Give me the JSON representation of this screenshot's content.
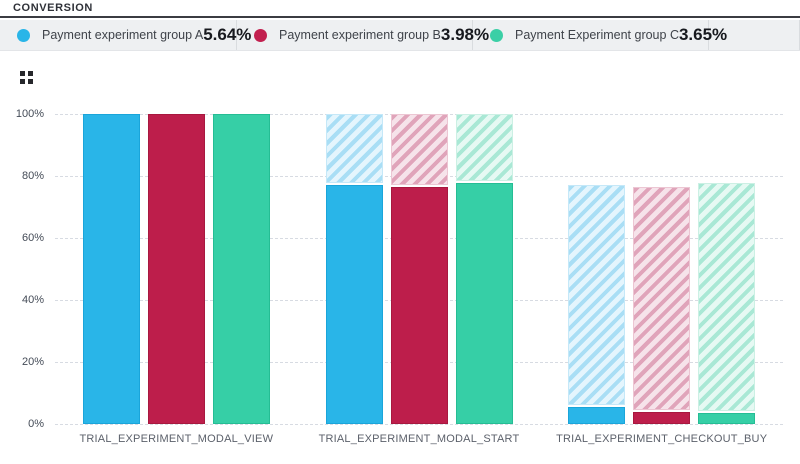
{
  "header": {
    "title": "CONVERSION"
  },
  "legend": {
    "items": [
      {
        "label": "Payment experiment group A",
        "value": "5.64%",
        "color": "#29b5e8"
      },
      {
        "label": "Payment experiment group B",
        "value": "3.98%",
        "color": "#c2204f"
      },
      {
        "label": "Payment Experiment group C",
        "value": "3.65%",
        "color": "#3bcfa6"
      }
    ]
  },
  "icons": {
    "grid_handle": "grid-handle-icon"
  },
  "chart_data": {
    "type": "bar",
    "subtype": "funnel-conversion-with-hatched-loss",
    "title": "CONVERSION",
    "categories": [
      "TRIAL_EXPERIMENT_MODAL_VIEW",
      "TRIAL_EXPERIMENT_MODAL_START",
      "TRIAL_EXPERIMENT_CHECKOUT_BUY"
    ],
    "series": [
      {
        "name": "Payment experiment group A",
        "values": [
          100,
          77.0,
          5.64
        ],
        "color": "#29b5e8",
        "border_color": "#1aa5da",
        "hatch_stripe": "#a9def5",
        "hatch_bg": "#e4f5fd",
        "hatch_border": "#c5e8f8"
      },
      {
        "name": "Payment experiment group B",
        "values": [
          100,
          76.4,
          3.98
        ],
        "color": "#bd1e4b",
        "border_color": "#a8183f",
        "hatch_stripe": "#e0a4ba",
        "hatch_bg": "#f6e3ea",
        "hatch_border": "#ecc6d3"
      },
      {
        "name": "Payment Experiment group C",
        "values": [
          100,
          77.6,
          3.65
        ],
        "color": "#36cfa6",
        "border_color": "#25bd94",
        "hatch_stripe": "#a9e8d5",
        "hatch_bg": "#e6f9f3",
        "hatch_border": "#ccf0e4"
      }
    ],
    "overall_conversion": [
      "5.64%",
      "3.98%",
      "3.65%"
    ],
    "ylim": [
      0,
      100
    ],
    "y_ticks": [
      0,
      20,
      40,
      60,
      80,
      100
    ],
    "y_tick_suffix": "%",
    "grid": true,
    "legend_position": "top"
  }
}
